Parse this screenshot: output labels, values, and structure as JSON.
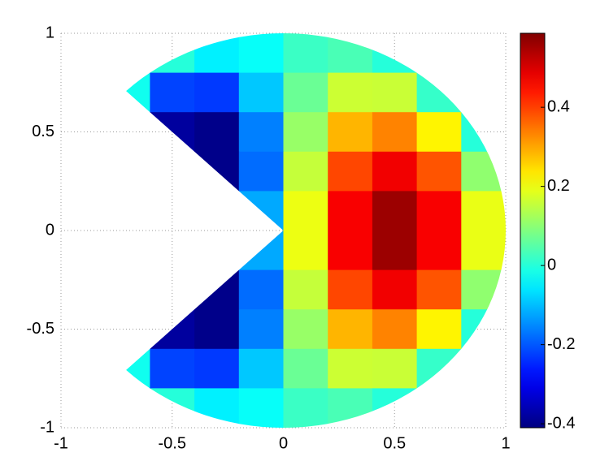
{
  "chart_data": {
    "type": "contourf",
    "x": [
      -0.9,
      -0.7,
      -0.5,
      -0.3,
      -0.1,
      0.1,
      0.3,
      0.5,
      0.7,
      0.9
    ],
    "y": [
      0.9,
      0.7,
      0.5,
      0.3,
      0.1,
      -0.1,
      -0.3,
      -0.5,
      -0.7,
      -0.9
    ],
    "z": [
      [
        null,
        null,
        0,
        -0.05,
        -0.03,
        0.021,
        0.035,
        0,
        null,
        null
      ],
      [
        null,
        -0.02,
        -0.22,
        -0.23,
        -0.09,
        0.067,
        0.163,
        0.16,
        0.016,
        null
      ],
      [
        null,
        null,
        -0.38,
        -0.4,
        -0.16,
        0.112,
        0.285,
        0.334,
        0.223,
        0
      ],
      [
        null,
        null,
        null,
        -0.4,
        -0.18,
        0.156,
        0.394,
        0.475,
        0.38,
        0.105
      ],
      [
        null,
        null,
        null,
        null,
        -0.12,
        0.196,
        0.468,
        0.559,
        0.468,
        0.193
      ],
      [
        null,
        null,
        null,
        null,
        -0.12,
        0.196,
        0.468,
        0.559,
        0.468,
        0.193
      ],
      [
        null,
        null,
        null,
        -0.4,
        -0.18,
        0.156,
        0.394,
        0.475,
        0.38,
        0.105
      ],
      [
        null,
        null,
        -0.38,
        -0.4,
        -0.16,
        0.112,
        0.285,
        0.334,
        0.223,
        0
      ],
      [
        null,
        -0.02,
        -0.22,
        -0.23,
        -0.09,
        0.067,
        0.163,
        0.16,
        0.016,
        null
      ],
      [
        null,
        null,
        0,
        -0.05,
        -0.03,
        0.021,
        0.035,
        0,
        null,
        null
      ]
    ],
    "xlim": [
      -1,
      1
    ],
    "ylim": [
      -1,
      1
    ],
    "xticks": [
      -1,
      -0.5,
      0,
      0.5,
      1
    ],
    "yticks": [
      -1,
      -0.5,
      0,
      0.5,
      1
    ],
    "clim": [
      -0.41,
      0.587
    ],
    "cticks": [
      -0.4,
      -0.2,
      0,
      0.2,
      0.4
    ],
    "colormap": "jet",
    "grid": true
  }
}
